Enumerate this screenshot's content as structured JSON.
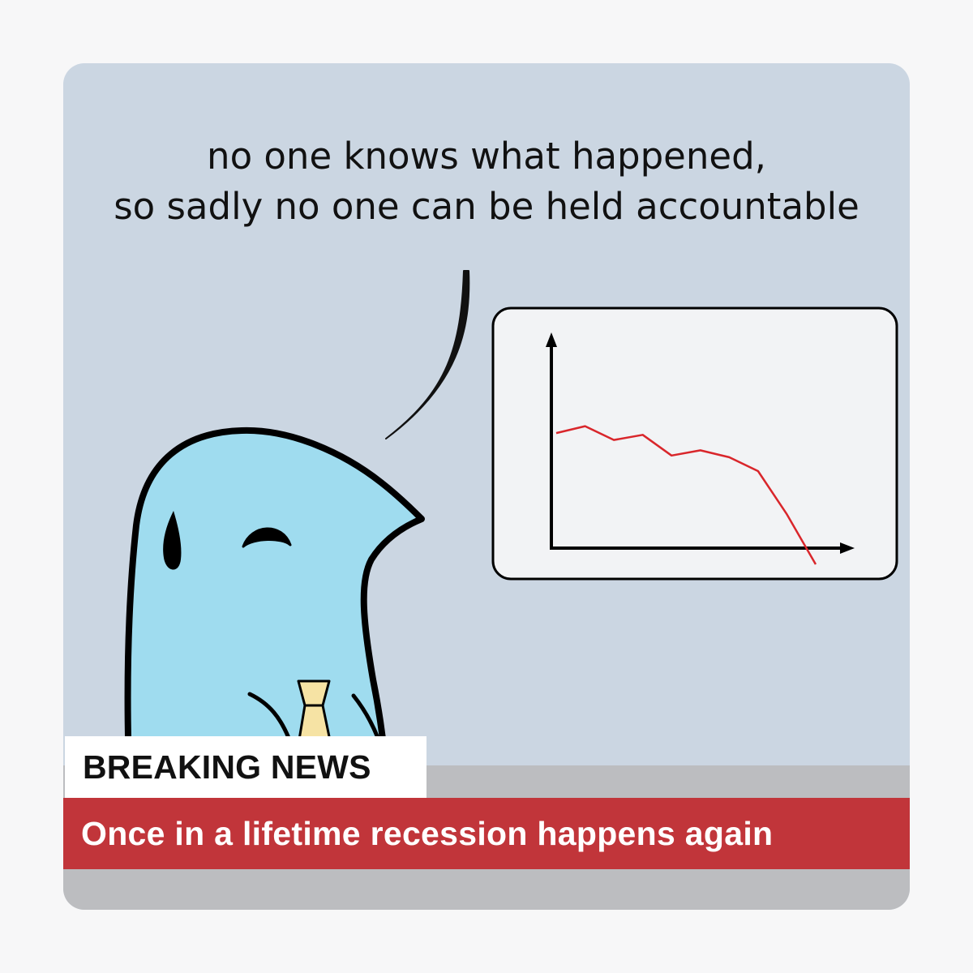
{
  "speech": {
    "line1": "no one knows what happened,",
    "line2": "so sadly no one can be held accountable"
  },
  "news": {
    "breaking_label": "BREAKING NEWS",
    "headline": "Once in a lifetime recession happens again"
  },
  "colors": {
    "panel_bg": "#cbd6e2",
    "floor": "#bcbdc0",
    "ticker_red": "#c1353a",
    "bird_blue": "#9fdcef",
    "tie_yellow": "#f6e3a4",
    "chart_line": "#d9262b",
    "chart_screen": "#f2f3f5"
  },
  "chart_data": {
    "type": "line",
    "title": "",
    "xlabel": "",
    "ylabel": "",
    "x": [
      0,
      1,
      2,
      3,
      4,
      5,
      6,
      7,
      8,
      9
    ],
    "series": [
      {
        "values": [
          76,
          80,
          72,
          75,
          63,
          66,
          62,
          54,
          29,
          0
        ]
      }
    ],
    "xlim": [
      0,
      9
    ],
    "ylim": [
      0,
      100
    ],
    "grid": false,
    "axis_ticks": false
  }
}
